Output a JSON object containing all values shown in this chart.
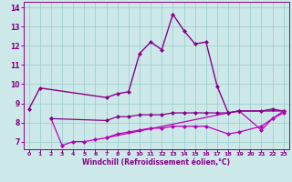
{
  "xlabel": "Windchill (Refroidissement éolien,°C)",
  "background_color": "#cce8e8",
  "line_color_main": "#880088",
  "line_color_alt": "#bb00bb",
  "xlim": [
    -0.5,
    23.5
  ],
  "ylim": [
    6.6,
    14.3
  ],
  "yticks": [
    7,
    8,
    9,
    10,
    11,
    12,
    13,
    14
  ],
  "xticks": [
    0,
    1,
    2,
    3,
    4,
    5,
    6,
    7,
    8,
    9,
    10,
    11,
    12,
    13,
    14,
    15,
    16,
    17,
    18,
    19,
    20,
    21,
    22,
    23
  ],
  "line1_x": [
    0,
    1,
    7,
    8,
    9,
    10,
    11,
    12,
    13,
    14,
    15,
    16,
    17,
    18,
    19,
    23
  ],
  "line1_y": [
    8.7,
    9.8,
    9.3,
    9.5,
    9.6,
    11.6,
    12.2,
    11.8,
    13.65,
    12.8,
    12.1,
    12.2,
    9.9,
    8.5,
    8.6,
    8.6
  ],
  "line2_x": [
    2,
    3,
    4,
    5,
    6,
    7,
    18,
    19,
    21,
    22,
    23
  ],
  "line2_y": [
    8.2,
    6.8,
    7.0,
    7.0,
    7.1,
    7.2,
    8.5,
    8.6,
    7.6,
    8.2,
    8.5
  ],
  "line3_x": [
    2,
    7,
    8,
    9,
    10,
    11,
    12,
    13,
    14,
    15,
    16,
    17,
    18,
    19,
    21,
    22,
    23
  ],
  "line3_y": [
    8.2,
    8.1,
    8.3,
    8.3,
    8.4,
    8.4,
    8.4,
    8.5,
    8.5,
    8.5,
    8.5,
    8.5,
    8.5,
    8.6,
    8.6,
    8.7,
    8.6
  ],
  "line4_x": [
    7,
    8,
    9,
    10,
    11,
    12,
    13,
    14,
    15,
    16,
    18,
    19,
    21,
    22,
    23
  ],
  "line4_y": [
    7.2,
    7.4,
    7.5,
    7.6,
    7.7,
    7.7,
    7.8,
    7.8,
    7.8,
    7.8,
    7.4,
    7.5,
    7.8,
    8.2,
    8.6
  ],
  "grid_color": "#99cccc",
  "marker": "D",
  "marker_size": 2.0,
  "lw1": 1.0,
  "lw2": 0.9
}
